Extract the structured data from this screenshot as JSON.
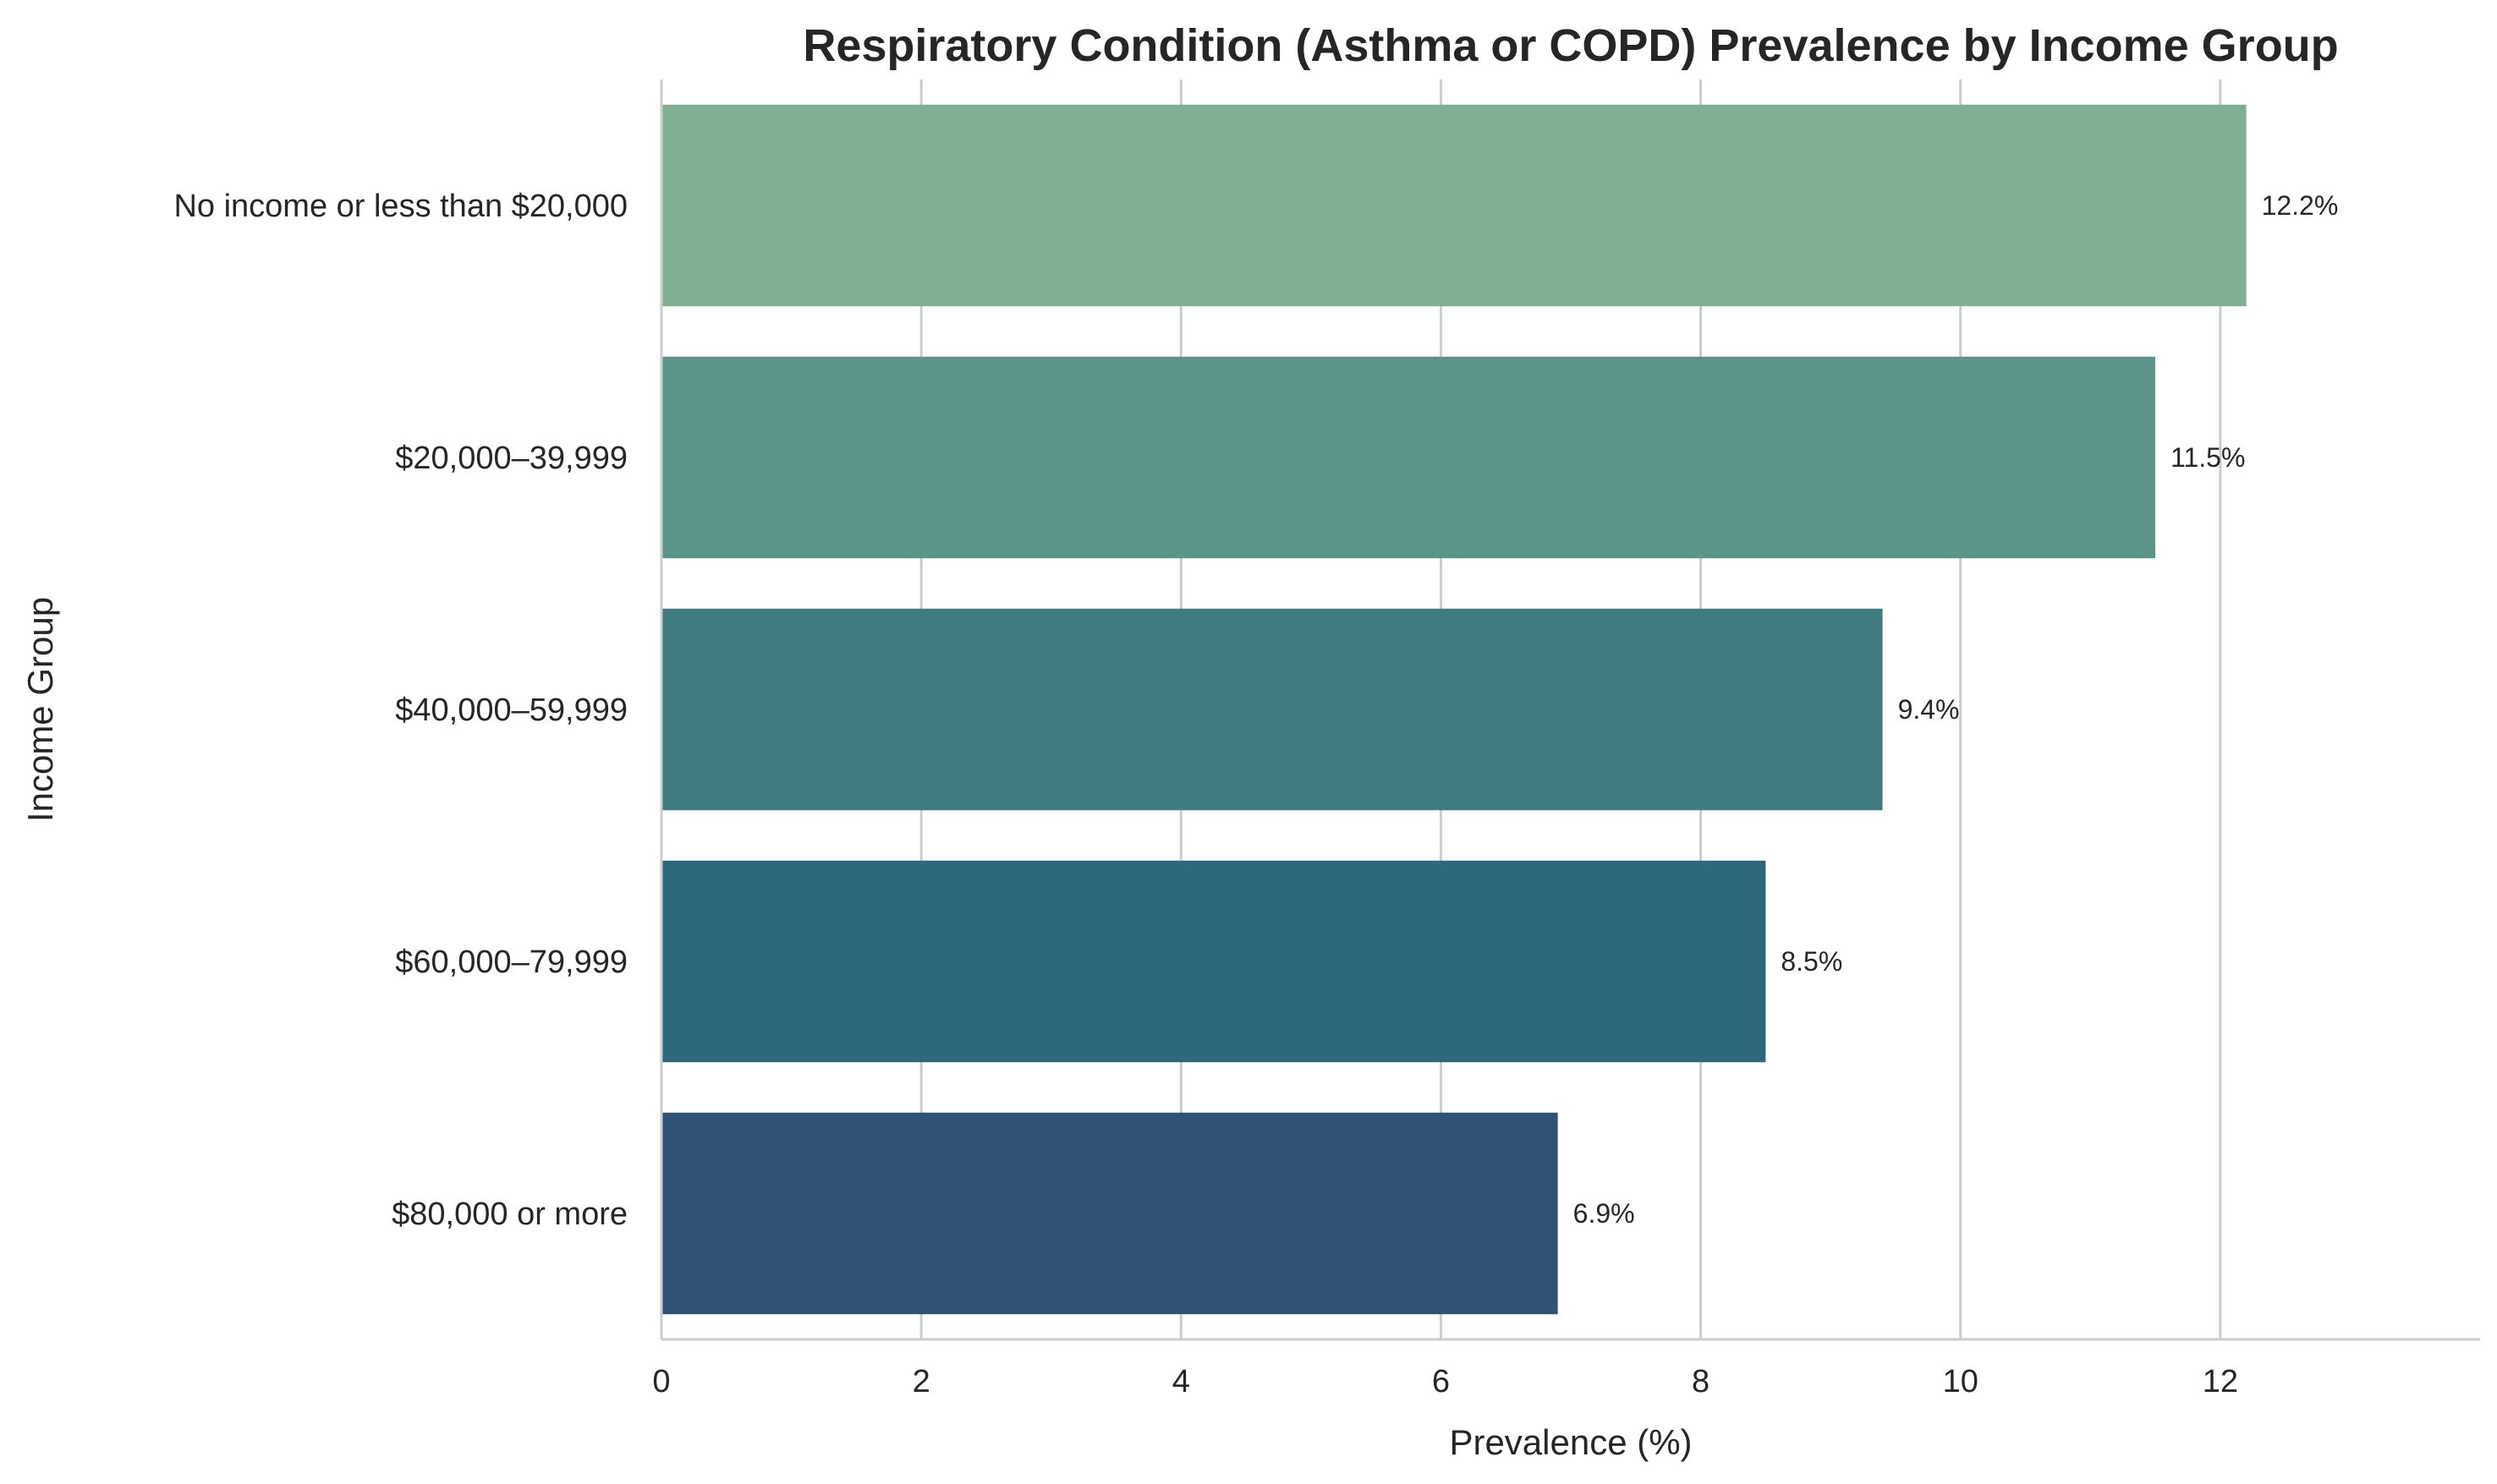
{
  "chart_data": {
    "type": "bar",
    "orientation": "horizontal",
    "title": "Respiratory Condition (Asthma or COPD) Prevalence by Income Group",
    "xlabel": "Prevalence (%)",
    "ylabel": "Income Group",
    "xlim": [
      0,
      14
    ],
    "xticks": [
      0,
      2,
      4,
      6,
      8,
      10,
      12
    ],
    "grid": "vertical",
    "categories": [
      "No income or less than $20,000",
      "$20,000–39,999",
      "$40,000–59,999",
      "$60,000–79,999",
      "$80,000 or more"
    ],
    "values": [
      12.2,
      11.5,
      9.4,
      8.5,
      6.9
    ],
    "data_labels": [
      "12.2%",
      "11.5%",
      "9.4%",
      "8.5%",
      "6.9%"
    ],
    "colors": [
      "#80af91",
      "#5b9489",
      "#407b80",
      "#2d687c",
      "#2f5275"
    ]
  }
}
